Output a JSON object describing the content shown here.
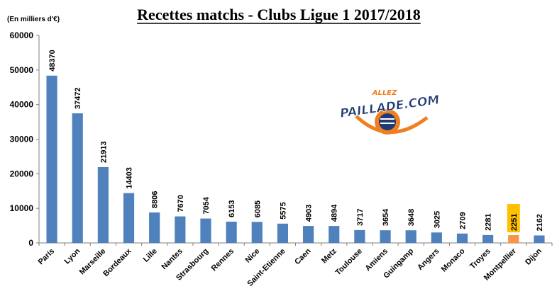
{
  "chart_data": {
    "type": "bar",
    "title": "Recettes matchs - Clubs Ligue 1 2017/2018",
    "unit_label": "(En milliers d'€)",
    "categories": [
      "Paris",
      "Lyon",
      "Marseille",
      "Bordeaux",
      "Lille",
      "Nantes",
      "Strasbourg",
      "Rennes",
      "Nice",
      "Saint-Etienne",
      "Caen",
      "Metz",
      "Toulouse",
      "Amiens",
      "Guingamp",
      "Angers",
      "Monaco",
      "Troyes",
      "Montpellier",
      "Dijon"
    ],
    "values": [
      48370,
      37472,
      21913,
      14403,
      8806,
      7670,
      7054,
      6153,
      6085,
      5575,
      4903,
      4894,
      3717,
      3654,
      3648,
      3025,
      2709,
      2281,
      2251,
      2162
    ],
    "data_labels": [
      "48370",
      "37472",
      "21913",
      "14403",
      "8806",
      "7670",
      "7054",
      "6153",
      "6085",
      "5575",
      "4903",
      "4894",
      "3717",
      "3654",
      "3648",
      "3025",
      "2709",
      "2281",
      "2251",
      "2162"
    ],
    "ylim": [
      0,
      60000
    ],
    "yticks": [
      "0",
      "10000",
      "20000",
      "30000",
      "40000",
      "50000",
      "60000"
    ],
    "grid": false,
    "legend": "none",
    "highlight_category": "Montpellier",
    "colors": {
      "bar": "#4f81bd",
      "highlight_bar": "#f79646",
      "highlight_label_bg": "#ffc000",
      "axis": "#7f7f7f"
    }
  },
  "logo": {
    "line1": "ALLEZ",
    "line2": "PAILLADE.COM",
    "colors": {
      "blue": "#1f3b73",
      "orange": "#f07f21"
    }
  }
}
